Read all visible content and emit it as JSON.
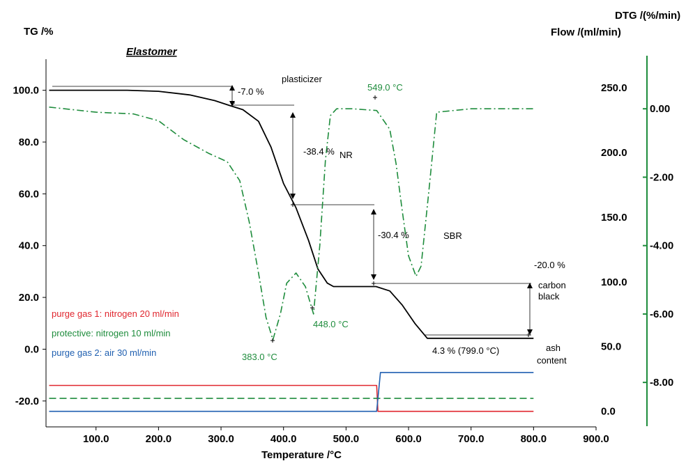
{
  "chart_data": {
    "type": "line",
    "title": "Elastomer",
    "xlabel": "Temperature /°C",
    "ylabel_left": "TG /%",
    "ylabel_right_1": "Flow /(ml/min)",
    "ylabel_right_2": "DTG /(%/min)",
    "xlim": [
      20,
      900
    ],
    "ylim_tg": [
      -30,
      112
    ],
    "ylim_flow": [
      -12,
      272
    ],
    "ylim_dtg": [
      -9.3,
      1.45
    ],
    "x_ticks": [
      "100.0",
      "200.0",
      "300.0",
      "400.0",
      "500.0",
      "600.0",
      "700.0",
      "800.0",
      "900.0"
    ],
    "x_tick_values": [
      100,
      200,
      300,
      400,
      500,
      600,
      700,
      800,
      900
    ],
    "tg_ticks": [
      "100.0",
      "80.0",
      "60.0",
      "40.0",
      "20.0",
      "0.0",
      "-20.0"
    ],
    "tg_tick_values": [
      100,
      80,
      60,
      40,
      20,
      0,
      -20
    ],
    "flow_ticks": [
      "250.0",
      "200.0",
      "150.0",
      "100.0",
      "50.0",
      "0.0"
    ],
    "flow_tick_values": [
      250,
      200,
      150,
      100,
      50,
      0
    ],
    "dtg_ticks": [
      "0.00",
      "-2.00",
      "-4.00",
      "-6.00",
      "-8.00"
    ],
    "dtg_tick_values": [
      0,
      -2,
      -4,
      -6,
      -8
    ],
    "series": [
      {
        "axis": "tg",
        "color": "#000000",
        "style": "solid",
        "x": [
          25,
          150,
          200,
          250,
          290,
          315,
          335,
          360,
          380,
          400,
          420,
          440,
          455,
          470,
          480,
          500,
          520,
          548,
          570,
          590,
          610,
          630,
          700,
          800
        ],
        "y": [
          100,
          100,
          99.6,
          98.2,
          96,
          94,
          92.5,
          88,
          78,
          64,
          54.6,
          42,
          31,
          25.5,
          24.2,
          24.2,
          24.2,
          24.2,
          22.5,
          17,
          10,
          4.2,
          4.2,
          4.2
        ]
      },
      {
        "axis": "dtg",
        "color": "#1e8c3c",
        "style": "dash-dot",
        "x": [
          25,
          100,
          160,
          200,
          240,
          280,
          310,
          330,
          345,
          360,
          372,
          383,
          395,
          405,
          420,
          435,
          448,
          458,
          467,
          475,
          485,
          510,
          549,
          570,
          580,
          590,
          600,
          612,
          620,
          632,
          645,
          700,
          800
        ],
        "y": [
          0.05,
          -0.1,
          -0.15,
          -0.35,
          -0.9,
          -1.3,
          -1.55,
          -2.1,
          -3.3,
          -4.8,
          -6.1,
          -6.75,
          -6.0,
          -5.1,
          -4.8,
          -5.2,
          -6.0,
          -4.0,
          -1.5,
          -0.2,
          0.0,
          0.0,
          -0.05,
          -0.6,
          -1.6,
          -3.0,
          -4.3,
          -4.9,
          -4.6,
          -2.5,
          -0.1,
          0.0,
          0.0
        ]
      },
      {
        "axis": "flow",
        "color": "#e0262e",
        "style": "solid",
        "name": "purge gas 1: nitrogen 20 ml/min",
        "x": [
          25,
          549,
          551,
          800
        ],
        "y": [
          20,
          20,
          0,
          0
        ]
      },
      {
        "axis": "flow",
        "color": "#1e8c3c",
        "style": "dashed",
        "name": "protective: nitrogen 10 ml/min",
        "x": [
          25,
          800
        ],
        "y": [
          10,
          10
        ]
      },
      {
        "axis": "flow",
        "color": "#1f5fb0",
        "style": "solid",
        "name": "purge gas 2: air 30 ml/min",
        "x": [
          25,
          549,
          555,
          800
        ],
        "y": [
          0,
          0,
          30,
          30
        ]
      }
    ],
    "annotations": {
      "step1": "-7.0 %",
      "step2": "-38.4 %",
      "step3": "-30.4 %",
      "step4": "-20.0 %",
      "residue": "4.3 % (799.0 °C)",
      "peak1": "383.0 °C",
      "peak2": "448.0 °C",
      "peak3": "549.0 °C",
      "plasticizer": "plasticizer",
      "nr": "NR",
      "sbr": "SBR",
      "carbon1": "carbon",
      "carbon2": "black",
      "ash1": "ash",
      "ash2": "content"
    }
  }
}
